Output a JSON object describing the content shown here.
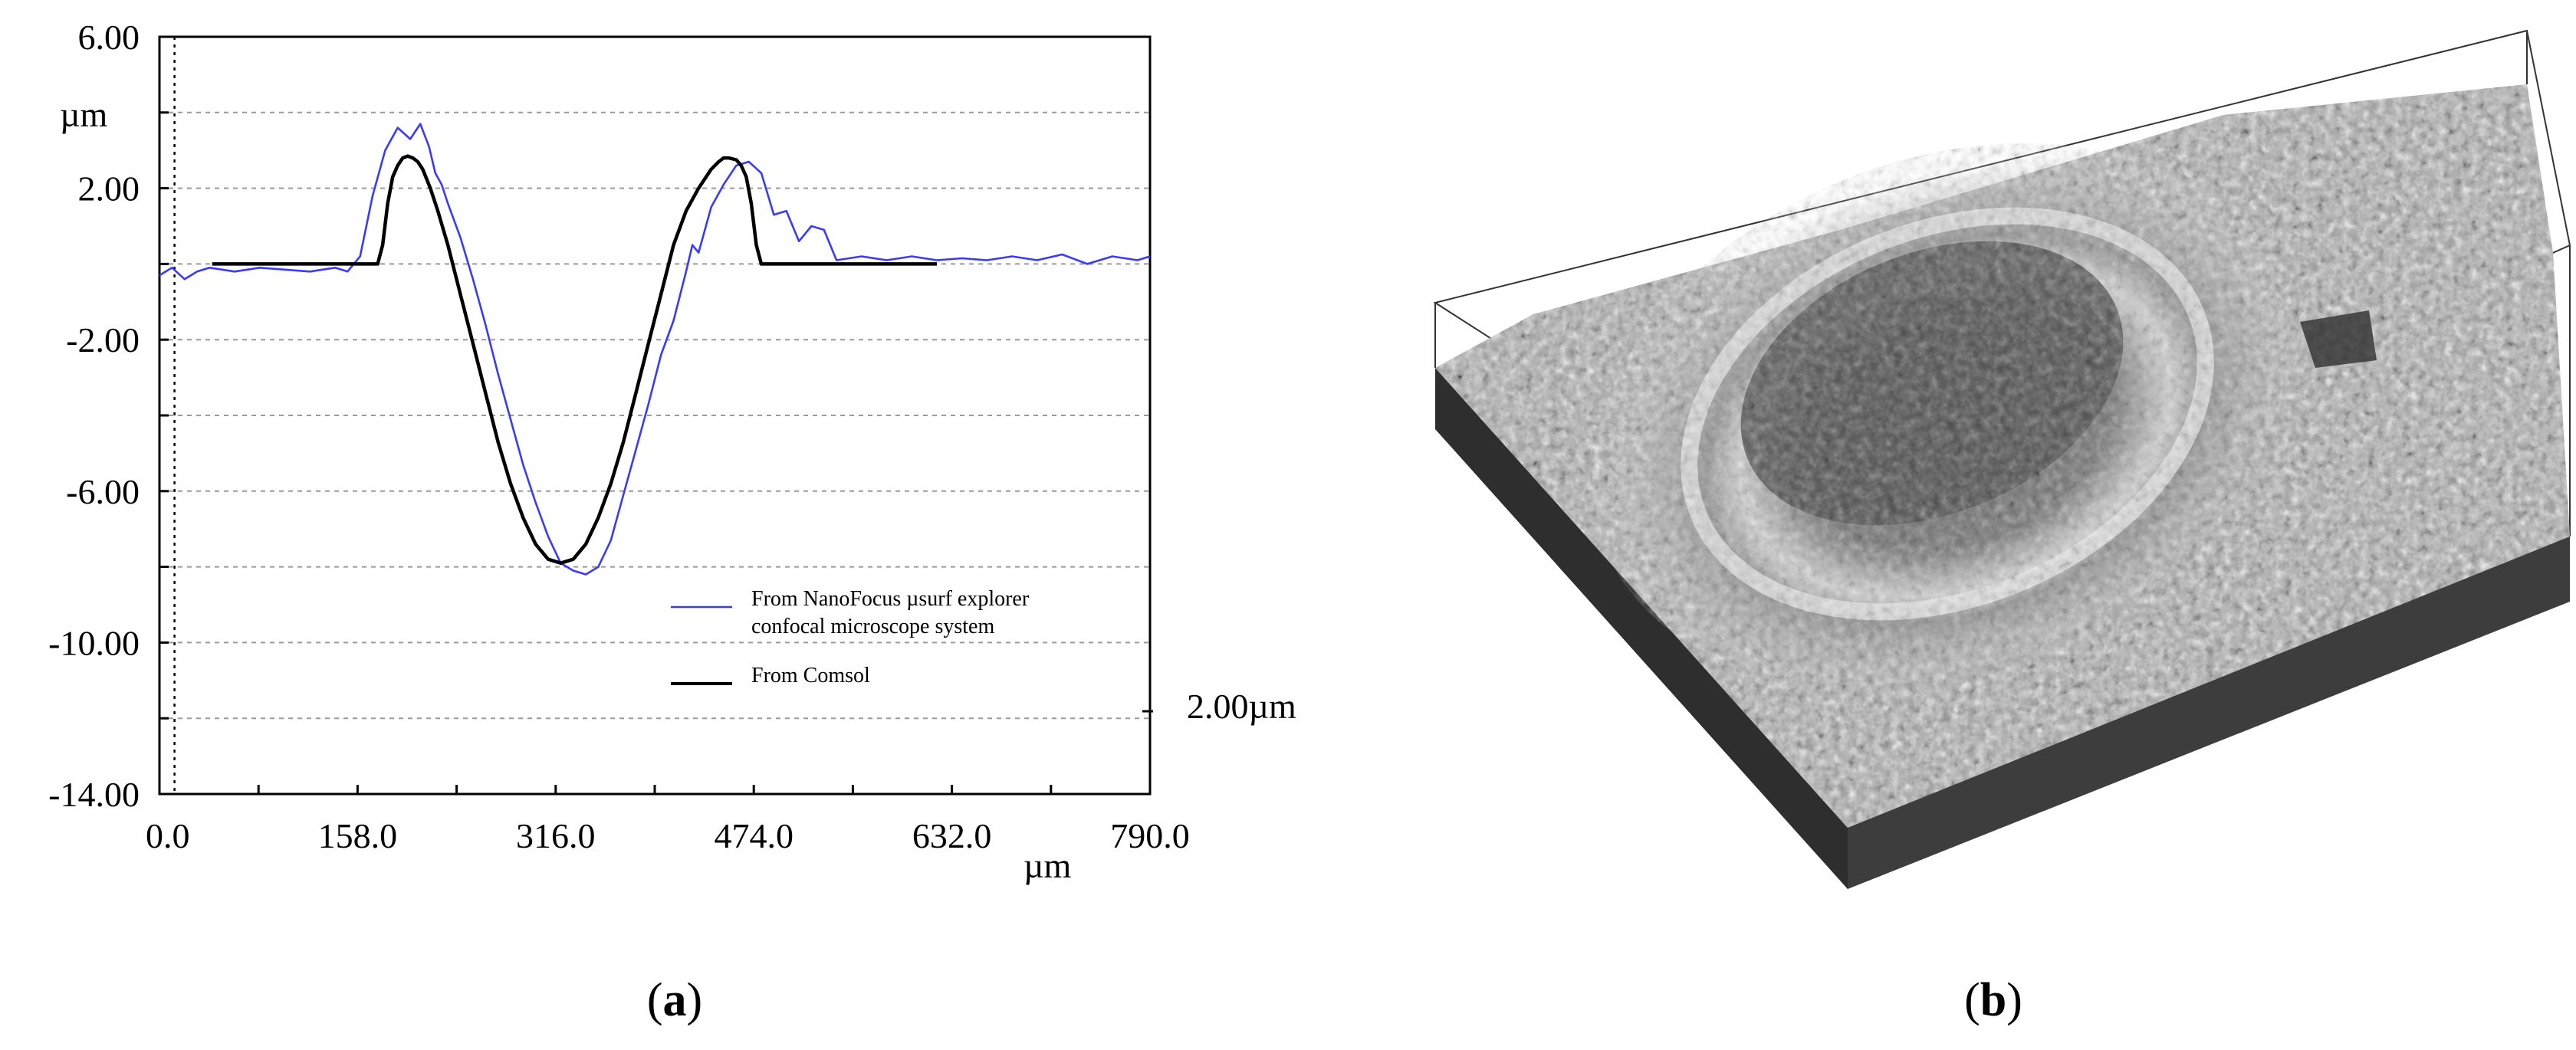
{
  "chart_data": [
    {
      "type": "line",
      "panel": "(a)",
      "panel_letter": "a",
      "xunit": "µm",
      "yunit": "µm",
      "xlim": [
        0,
        790
      ],
      "ylim": [
        -14,
        6
      ],
      "x_ticks": [
        {
          "value": 0,
          "label": "0.0"
        },
        {
          "value": 158,
          "label": "158.0"
        },
        {
          "value": 316,
          "label": "316.0"
        },
        {
          "value": 474,
          "label": "474.0"
        },
        {
          "value": 632,
          "label": "632.0"
        },
        {
          "value": 790,
          "label": "790.0"
        }
      ],
      "y_ticks": [
        {
          "value": 6,
          "label": "6.00"
        },
        {
          "value": 2,
          "label": "2.00"
        },
        {
          "value": -2,
          "label": "-2.00"
        },
        {
          "value": -6,
          "label": "-6.00"
        },
        {
          "value": -10,
          "label": "-10.00"
        },
        {
          "value": -14,
          "label": "-14.00"
        }
      ],
      "grid": true,
      "scale_annotation": "2.00µm",
      "legend": {
        "placement": "lower-right",
        "entries": [
          {
            "lines": [
              "From NanoFocus µsurf explorer",
              " confocal microscope system"
            ],
            "color": "#3a3aff"
          },
          {
            "lines": [
              "From Comsol"
            ],
            "color": "#000000"
          }
        ]
      },
      "series": [
        {
          "color": "#3a3aff",
          "x": [
            0,
            10,
            20,
            30,
            40,
            60,
            80,
            100,
            120,
            140,
            150,
            160,
            170,
            180,
            190,
            200,
            208,
            215,
            220,
            225,
            230,
            240,
            250,
            260,
            270,
            280,
            290,
            300,
            310,
            320,
            330,
            340,
            350,
            360,
            370,
            380,
            390,
            400,
            410,
            420,
            425,
            430,
            440,
            450,
            460,
            470,
            480,
            490,
            500,
            510,
            520,
            530,
            540,
            560,
            580,
            600,
            620,
            640,
            660,
            680,
            700,
            720,
            740,
            760,
            780,
            790
          ],
          "y": [
            -0.3,
            -0.1,
            -0.4,
            -0.2,
            -0.1,
            -0.2,
            -0.1,
            -0.15,
            -0.2,
            -0.1,
            -0.2,
            0.2,
            1.8,
            3.0,
            3.6,
            3.3,
            3.7,
            3.1,
            2.4,
            2.1,
            1.6,
            0.7,
            -0.4,
            -1.6,
            -2.9,
            -4.1,
            -5.3,
            -6.3,
            -7.2,
            -7.9,
            -8.1,
            -8.2,
            -8.0,
            -7.3,
            -6.1,
            -4.9,
            -3.7,
            -2.4,
            -1.5,
            -0.2,
            0.5,
            0.3,
            1.5,
            2.1,
            2.6,
            2.7,
            2.4,
            1.3,
            1.4,
            0.6,
            1.0,
            0.9,
            0.1,
            0.2,
            0.1,
            0.2,
            0.1,
            0.15,
            0.1,
            0.2,
            0.1,
            0.25,
            0.0,
            0.2,
            0.1,
            0.2
          ]
        },
        {
          "color": "#000000",
          "x": [
            42,
            100,
            150,
            174,
            178,
            182,
            186,
            190,
            194,
            198,
            202,
            206,
            210,
            216,
            222,
            230,
            240,
            250,
            260,
            270,
            280,
            290,
            300,
            310,
            320,
            330,
            340,
            350,
            360,
            370,
            380,
            390,
            400,
            410,
            420,
            430,
            440,
            446,
            450,
            454,
            460,
            464,
            468,
            472,
            476,
            480,
            520,
            570,
            620
          ],
          "y": [
            0,
            0,
            0,
            0,
            0.5,
            1.6,
            2.3,
            2.6,
            2.8,
            2.85,
            2.8,
            2.7,
            2.5,
            2.0,
            1.4,
            0.5,
            -0.8,
            -2.1,
            -3.4,
            -4.7,
            -5.8,
            -6.7,
            -7.4,
            -7.8,
            -7.9,
            -7.8,
            -7.4,
            -6.7,
            -5.8,
            -4.7,
            -3.4,
            -2.1,
            -0.8,
            0.5,
            1.4,
            2.0,
            2.5,
            2.7,
            2.8,
            2.8,
            2.75,
            2.6,
            2.3,
            1.6,
            0.5,
            0,
            0,
            0,
            0
          ]
        }
      ]
    },
    {
      "type": "other",
      "panel": "(b)",
      "panel_letter": "b",
      "description_label": ""
    }
  ]
}
